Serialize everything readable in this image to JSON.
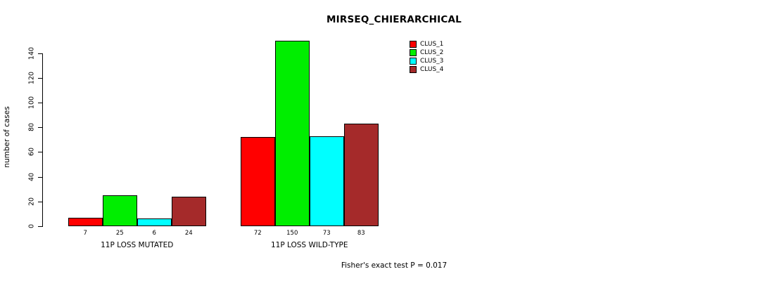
{
  "title": "MIRSEQ_CHIERARCHICAL",
  "y_axis_label": "number of cases",
  "footer": "Fisher's exact test P = 0.017",
  "legend": {
    "entries": [
      {
        "label": "CLUS_1",
        "color": "#FF0000"
      },
      {
        "label": "CLUS_2",
        "color": "#00EE00"
      },
      {
        "label": "CLUS_3",
        "color": "#00FFFF"
      },
      {
        "label": "CLUS_4",
        "color": "#A52A2A"
      }
    ]
  },
  "chart_data": {
    "type": "bar",
    "title": "MIRSEQ_CHIERARCHICAL",
    "xlabel": "",
    "ylabel": "number of cases",
    "categories": [
      "11P LOSS MUTATED",
      "11P LOSS WILD-TYPE"
    ],
    "series": [
      {
        "name": "CLUS_1",
        "color": "#FF0000",
        "values": [
          7,
          72
        ]
      },
      {
        "name": "CLUS_2",
        "color": "#00EE00",
        "values": [
          25,
          150
        ]
      },
      {
        "name": "CLUS_3",
        "color": "#00FFFF",
        "values": [
          6,
          73
        ]
      },
      {
        "name": "CLUS_4",
        "color": "#A52A2A",
        "values": [
          24,
          83
        ]
      }
    ],
    "bar_value_labels": [
      [
        7,
        25,
        6,
        24
      ],
      [
        72,
        150,
        73,
        83
      ]
    ],
    "yticks": [
      0,
      20,
      40,
      60,
      80,
      100,
      120,
      140
    ],
    "ylim": [
      0,
      150
    ],
    "grid": false,
    "legend_position": "top-right",
    "annotation": "Fisher's exact test P = 0.017"
  }
}
